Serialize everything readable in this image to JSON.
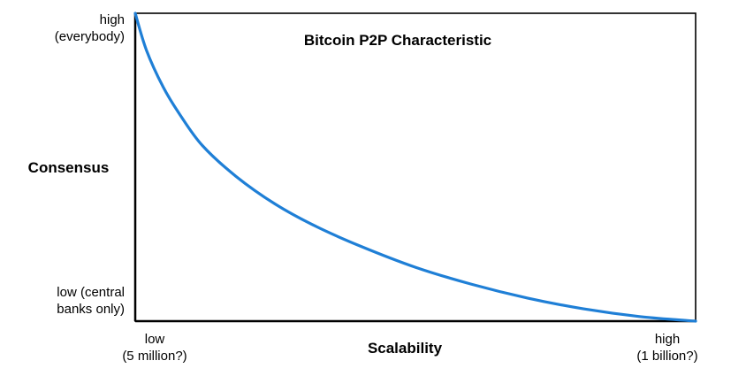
{
  "chart_data": {
    "type": "line",
    "title": "Bitcoin P2P Characteristic",
    "xlabel": "Scalability",
    "ylabel": "Consensus",
    "x_ticks": {
      "low": "low\n(5 million?)",
      "high": "high\n(1 billion?)"
    },
    "y_ticks": {
      "high": "high\n(everybody)",
      "low": "low (central\nbanks only)"
    },
    "xlim": [
      0,
      1
    ],
    "ylim": [
      0,
      1
    ],
    "grid": false,
    "legend": "none",
    "series": [
      {
        "color": "#1f7fd6",
        "x": [
          0,
          0.02,
          0.05,
          0.08,
          0.12,
          0.18,
          0.25,
          0.32,
          0.4,
          0.5,
          0.6,
          0.7,
          0.8,
          0.9,
          1.0
        ],
        "y": [
          1.0,
          0.88,
          0.76,
          0.67,
          0.57,
          0.47,
          0.38,
          0.31,
          0.245,
          0.175,
          0.12,
          0.075,
          0.04,
          0.015,
          0.0
        ]
      }
    ]
  }
}
